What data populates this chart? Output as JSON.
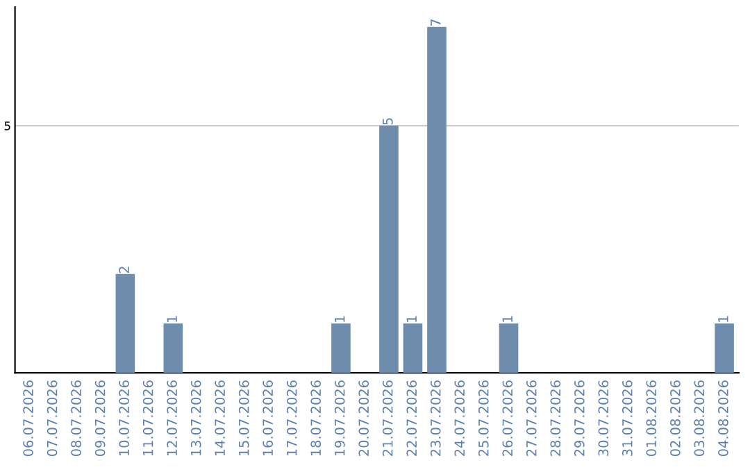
{
  "chart_data": {
    "type": "bar",
    "categories": [
      "06.07.2026",
      "07.07.2026",
      "08.07.2026",
      "09.07.2026",
      "10.07.2026",
      "11.07.2026",
      "12.07.2026",
      "13.07.2026",
      "14.07.2026",
      "15.07.2026",
      "16.07.2026",
      "17.07.2026",
      "18.07.2026",
      "19.07.2026",
      "20.07.2026",
      "21.07.2026",
      "22.07.2026",
      "23.07.2026",
      "24.07.2026",
      "25.07.2026",
      "26.07.2026",
      "27.07.2026",
      "28.07.2026",
      "29.07.2026",
      "30.07.2026",
      "31.07.2026",
      "01.08.2026",
      "02.08.2026",
      "03.08.2026",
      "04.08.2026"
    ],
    "values": [
      0,
      0,
      0,
      0,
      2,
      0,
      1,
      0,
      0,
      0,
      0,
      0,
      0,
      1,
      0,
      5,
      1,
      7,
      0,
      0,
      1,
      0,
      0,
      0,
      0,
      0,
      0,
      0,
      0,
      1
    ],
    "value_labels": [
      null,
      null,
      null,
      null,
      "2",
      null,
      "1",
      null,
      null,
      null,
      null,
      null,
      null,
      "1",
      null,
      "5",
      "1",
      "7",
      null,
      null,
      "1",
      null,
      null,
      null,
      null,
      null,
      null,
      null,
      null,
      "1"
    ],
    "color": "#6e8cab",
    "ylim": [
      0,
      7.4
    ],
    "yticks": [
      5
    ],
    "grid": "y"
  }
}
